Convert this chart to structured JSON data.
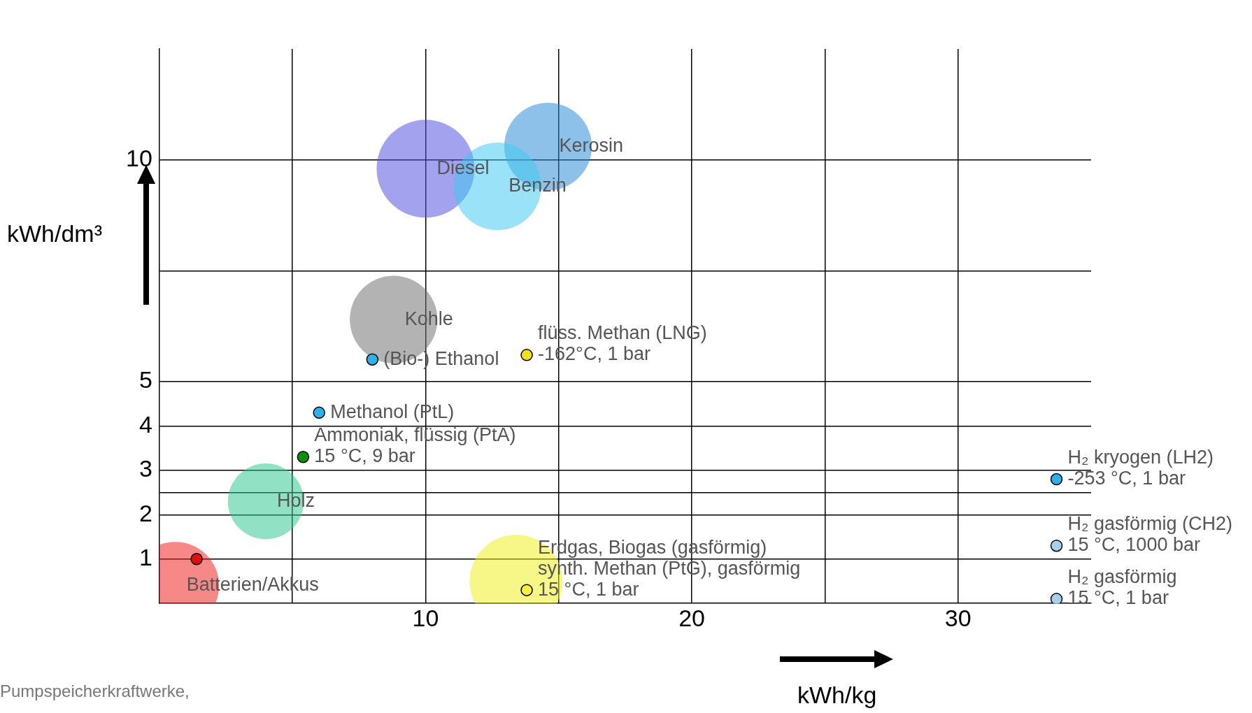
{
  "chart_data": {
    "type": "scatter",
    "xlabel": "kWh/kg",
    "ylabel": "kWh/dm³",
    "xlim": [
      0,
      35
    ],
    "ylim": [
      0,
      12.5
    ],
    "xticks": [
      {
        "value": 5,
        "label": null
      },
      10,
      {
        "value": 15,
        "label": null
      },
      20,
      {
        "value": 25,
        "label": null
      },
      30
    ],
    "yticks": [
      1,
      2,
      {
        "value": 2.5,
        "label": null
      },
      3,
      4,
      5,
      {
        "value": 7.5,
        "label": null
      },
      10
    ],
    "grid": true,
    "legend": false,
    "series": [
      {
        "type": "bubble",
        "x": [
          10.0,
          14.6,
          12.7,
          8.8,
          4.0,
          0.6,
          13.4
        ],
        "values": [
          9.8,
          10.3,
          9.4,
          6.4,
          2.3,
          0.4,
          0.5
        ],
        "sizes": [
          1,
          0.8,
          0.8,
          0.8,
          0.6,
          0.8,
          0.9
        ],
        "colors": [
          "#5050e0",
          "#2a8ad8",
          "#40c8f0",
          "#707070",
          "#30c890",
          "#f02020",
          "#f0f020"
        ]
      },
      {
        "type": "scatter",
        "marker": "circle",
        "x": [
          8.0,
          13.8,
          6.0,
          5.4,
          1.4,
          13.8,
          33.7,
          33.7,
          33.7
        ],
        "values": [
          5.5,
          5.6,
          4.3,
          3.3,
          1.0,
          0.3,
          2.8,
          1.3,
          0.1
        ],
        "colors": [
          "#30b0e8",
          "#f0e020",
          "#30b0e8",
          "#109010",
          "#e01010",
          "#f8f040",
          "#30b0e8",
          "#a8d0e8",
          "#a8d0e8"
        ]
      }
    ],
    "annotations": [
      {
        "text": "Diesel",
        "x": 10.0,
        "y": 9.8
      },
      {
        "text": "Kerosin",
        "x": 14.6,
        "y": 10.3
      },
      {
        "text": "Benzin",
        "x": 12.7,
        "y": 9.4
      },
      {
        "text": "Kohle",
        "x": 8.8,
        "y": 6.4
      },
      {
        "text": "Holz",
        "x": 4.0,
        "y": 2.3
      },
      {
        "text": "Batterien/Akkus",
        "x": 0.6,
        "y": 0.4
      },
      {
        "text": "(Bio-) Ethanol",
        "x": 8.0,
        "y": 5.5
      },
      {
        "text": "flüss. Methan (LNG)\n-162°C, 1 bar",
        "x": 13.8,
        "y": 5.6
      },
      {
        "text": "Methanol (PtL)",
        "x": 6.0,
        "y": 4.3
      },
      {
        "text": "Ammoniak, flüssig (PtA)\n15 °C, 9 bar",
        "x": 5.4,
        "y": 3.3
      },
      {
        "text": "Erdgas, Biogas (gasförmig)\nsynth. Methan (PtG), gasförmig\n15 °C, 1 bar",
        "x": 13.8,
        "y": 0.3
      },
      {
        "text": "H₂ kryogen (LH2)\n-253 °C, 1 bar",
        "x": 33.7,
        "y": 2.8
      },
      {
        "text": "H₂ gasförmig (CH2)\n15 °C, 1000 bar",
        "x": 33.7,
        "y": 1.3
      },
      {
        "text": "H₂ gasförmig\n15 °C, 1 bar",
        "x": 33.7,
        "y": 0.1
      },
      "Pumpspeicherkraftwerke,"
    ]
  }
}
